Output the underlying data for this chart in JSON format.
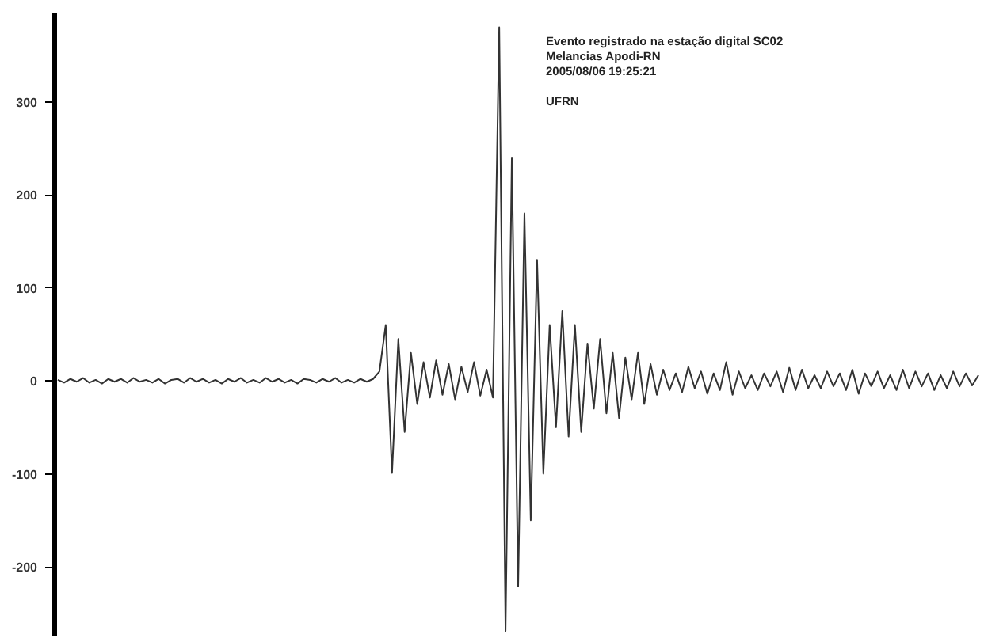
{
  "chart_data": {
    "type": "line",
    "categories": [
      null,
      null,
      null,
      null,
      null,
      null,
      null,
      null,
      null,
      null,
      null,
      null,
      null,
      null,
      null,
      null,
      null,
      null,
      null,
      null,
      null,
      null,
      null,
      null,
      null,
      null,
      null,
      null,
      null,
      null,
      null,
      null,
      null,
      null,
      null,
      null,
      null,
      null,
      null,
      null,
      null,
      null,
      null,
      null,
      null,
      null,
      null,
      null,
      null,
      null,
      null,
      null,
      null,
      null,
      null,
      null,
      null,
      null,
      null,
      null,
      null,
      null,
      null,
      null,
      null,
      null,
      null,
      null,
      null,
      null,
      null,
      null,
      null,
      null,
      null,
      null,
      null,
      null,
      null,
      null,
      null,
      null,
      null,
      null,
      null,
      null,
      null,
      null,
      null,
      null,
      null,
      null,
      null,
      null,
      null,
      null,
      null,
      null,
      null,
      null,
      null,
      null,
      null,
      null,
      null,
      null,
      null,
      null,
      null,
      null,
      null,
      null,
      null,
      null,
      null,
      null,
      null,
      null,
      null,
      null,
      null,
      null,
      null,
      null,
      null,
      null,
      null,
      null,
      null,
      null,
      null,
      null,
      null,
      null,
      null,
      null,
      null,
      null,
      null,
      null,
      null,
      null,
      null,
      null,
      null,
      null,
      null
    ],
    "series": [
      {
        "color": "#333333",
        "values": [
          1,
          -2,
          2,
          -1,
          3,
          -2,
          1,
          -3,
          2,
          -1,
          2,
          -2,
          3,
          -1,
          1,
          -2,
          2,
          -3,
          1,
          2,
          -2,
          3,
          -1,
          2,
          -2,
          1,
          -3,
          2,
          -1,
          3,
          -2,
          1,
          -2,
          3,
          -1,
          2,
          -2,
          1,
          -3,
          2,
          1,
          -2,
          2,
          -1,
          3,
          -2,
          1,
          -2,
          2,
          -1,
          2,
          10,
          60,
          -99,
          45,
          -55,
          30,
          -25,
          20,
          -18,
          22,
          -15,
          18,
          -20,
          15,
          -12,
          20,
          -16,
          12,
          -18,
          380,
          -269,
          240,
          -221,
          180,
          -150,
          130,
          -100,
          60,
          -50,
          75,
          -60,
          60,
          -55,
          40,
          -30,
          45,
          -35,
          30,
          -40,
          25,
          -20,
          30,
          -25,
          18,
          -15,
          12,
          -10,
          8,
          -12,
          15,
          -8,
          10,
          -14,
          8,
          -10,
          20,
          -15,
          10,
          -8,
          6,
          -10,
          8,
          -6,
          10,
          -12,
          14,
          -10,
          12,
          -8,
          6,
          -8,
          10,
          -6,
          8,
          -10,
          12,
          -14,
          8,
          -6,
          10,
          -8,
          6,
          -10,
          12,
          -8,
          10,
          -6,
          8,
          -10,
          6,
          -8,
          10,
          -6,
          8,
          -5,
          6
        ]
      }
    ],
    "ylim": [
      -274,
      395
    ],
    "yticks": [
      -200,
      -100,
      0,
      100,
      200,
      300
    ],
    "tick_labels": "y",
    "grid": false,
    "marker": "none",
    "line_style": "solid",
    "annotations": [
      "Evento registrado na estação digital SC02",
      "Melancias Apodi-RN",
      "2005/08/06 19:25:21",
      "UFRN"
    ]
  }
}
